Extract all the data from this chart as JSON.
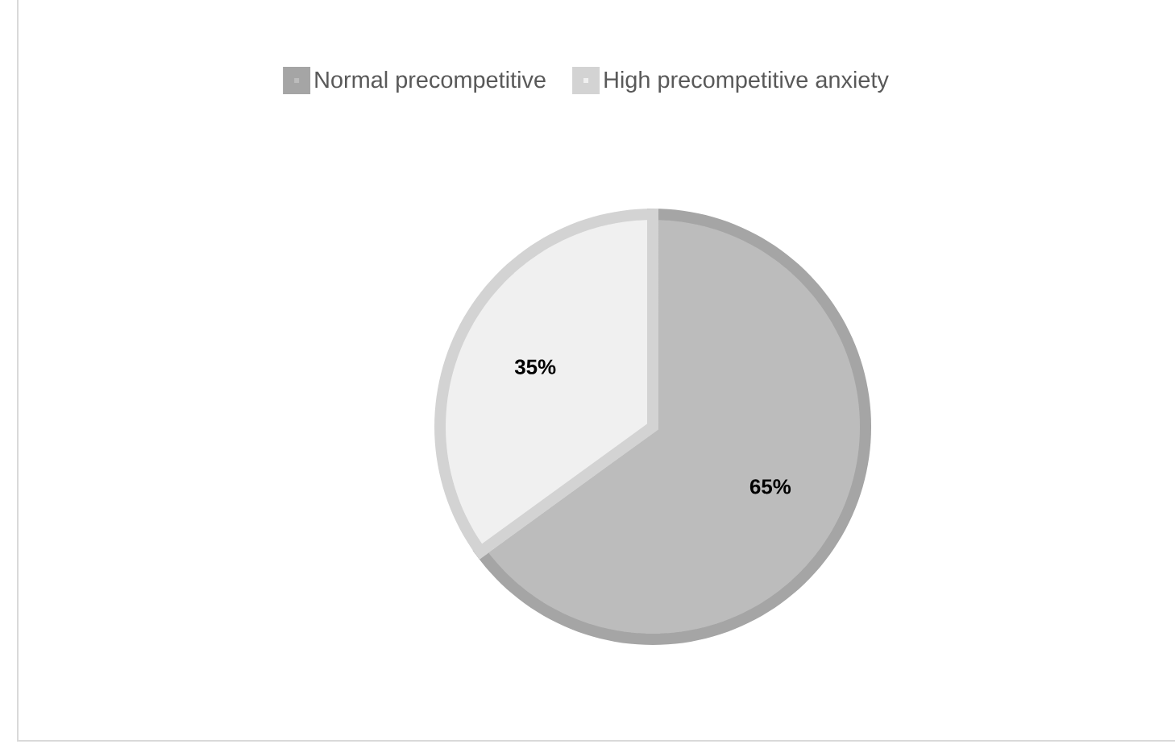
{
  "chart_data": {
    "type": "pie",
    "categories": [
      "Normal precompetitive",
      "High precompetitive anxiety"
    ],
    "values": [
      65,
      35
    ],
    "colors": [
      "#bcbcbc",
      "#f0f0f0"
    ],
    "value_labels": [
      "65%",
      "35%"
    ],
    "legend": "top"
  }
}
